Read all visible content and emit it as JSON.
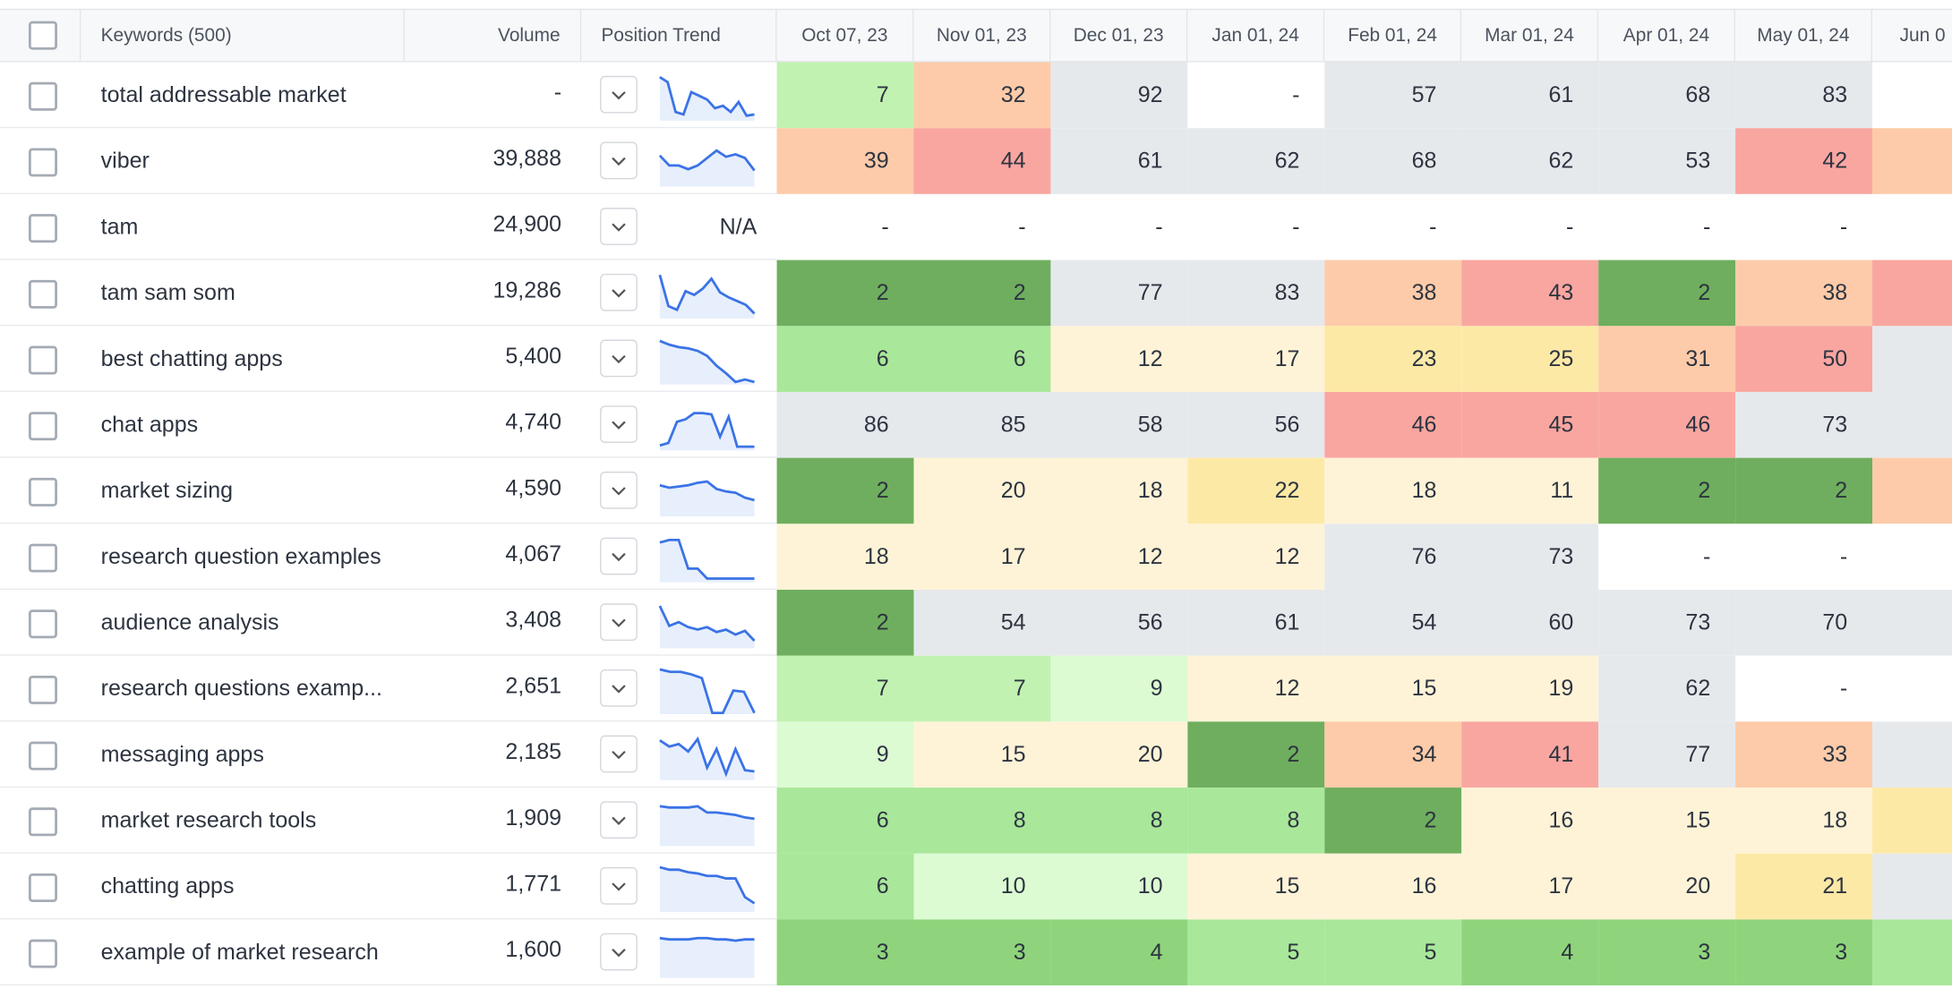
{
  "table": {
    "columns": [
      "Keywords (500)",
      "Volume",
      "Position Trend",
      "Oct 07, 23",
      "Nov 01, 23",
      "Dec 01, 23",
      "Jan 01, 24",
      "Feb 01, 24",
      "Mar 01, 24",
      "Apr 01, 24",
      "May 01, 24",
      "Jun 0"
    ],
    "rows": [
      {
        "keyword": "total addressable market",
        "volume": "-",
        "ranks": [
          7,
          32,
          92,
          "-",
          57,
          61,
          68,
          83
        ],
        "colors": [
          "#c2f2b1",
          "#fdcba9",
          "#e6e9ec",
          "#ffffff",
          "#e6e9ec",
          "#e6e9ec",
          "#e6e9ec",
          "#e6e9ec",
          "#ffffff"
        ]
      },
      {
        "keyword": "viber",
        "volume": "39,888",
        "ranks": [
          39,
          44,
          61,
          62,
          68,
          62,
          53,
          42
        ],
        "colors": [
          "#fdcba9",
          "#f9a6a0",
          "#e6e9ec",
          "#e6e9ec",
          "#e6e9ec",
          "#e6e9ec",
          "#e6e9ec",
          "#f9a6a0",
          "#fdcba9"
        ]
      },
      {
        "keyword": "tam",
        "volume": "24,900",
        "trend": "N/A",
        "ranks": [
          "-",
          "-",
          "-",
          "-",
          "-",
          "-",
          "-",
          "-"
        ],
        "colors": [
          "#ffffff",
          "#ffffff",
          "#ffffff",
          "#ffffff",
          "#ffffff",
          "#ffffff",
          "#ffffff",
          "#ffffff",
          "#ffffff"
        ]
      },
      {
        "keyword": "tam sam som",
        "volume": "19,286",
        "ranks": [
          2,
          2,
          77,
          83,
          38,
          43,
          2,
          38
        ],
        "colors": [
          "#6fae5e",
          "#6fae5e",
          "#e6e9ec",
          "#e6e9ec",
          "#fdcba9",
          "#f9a6a0",
          "#6fae5e",
          "#fdcba9",
          "#f9a6a0"
        ]
      },
      {
        "keyword": "best chatting apps",
        "volume": "5,400",
        "ranks": [
          6,
          6,
          12,
          17,
          23,
          25,
          31,
          50
        ],
        "colors": [
          "#a9e79a",
          "#a9e79a",
          "#fef3d7",
          "#fef3d7",
          "#fde9a6",
          "#fde9a6",
          "#fdcba9",
          "#f9a6a0",
          "#e6e9ec"
        ]
      },
      {
        "keyword": "chat apps",
        "volume": "4,740",
        "ranks": [
          86,
          85,
          58,
          56,
          46,
          45,
          46,
          73
        ],
        "colors": [
          "#e6e9ec",
          "#e6e9ec",
          "#e6e9ec",
          "#e6e9ec",
          "#f9a6a0",
          "#f9a6a0",
          "#f9a6a0",
          "#e6e9ec",
          "#e6e9ec"
        ]
      },
      {
        "keyword": "market sizing",
        "volume": "4,590",
        "ranks": [
          2,
          20,
          18,
          22,
          18,
          11,
          2,
          2
        ],
        "colors": [
          "#6fae5e",
          "#fef3d7",
          "#fef3d7",
          "#fde9a6",
          "#fef3d7",
          "#fef3d7",
          "#6fae5e",
          "#6fae5e",
          "#fdcba9"
        ]
      },
      {
        "keyword": "research question examples",
        "volume": "4,067",
        "ranks": [
          18,
          17,
          12,
          12,
          76,
          73,
          "-",
          "-"
        ],
        "colors": [
          "#fef3d7",
          "#fef3d7",
          "#fef3d7",
          "#fef3d7",
          "#e6e9ec",
          "#e6e9ec",
          "#ffffff",
          "#ffffff",
          "#ffffff"
        ]
      },
      {
        "keyword": "audience analysis",
        "volume": "3,408",
        "ranks": [
          2,
          54,
          56,
          61,
          54,
          60,
          73,
          70
        ],
        "colors": [
          "#6fae5e",
          "#e6e9ec",
          "#e6e9ec",
          "#e6e9ec",
          "#e6e9ec",
          "#e6e9ec",
          "#e6e9ec",
          "#e6e9ec",
          "#e6e9ec"
        ]
      },
      {
        "keyword": "research questions examp...",
        "volume": "2,651",
        "ranks": [
          7,
          7,
          9,
          12,
          15,
          19,
          62,
          "-"
        ],
        "colors": [
          "#c2f2b1",
          "#c2f2b1",
          "#dcfbd3",
          "#fef3d7",
          "#fef3d7",
          "#fef3d7",
          "#e6e9ec",
          "#ffffff",
          "#ffffff"
        ]
      },
      {
        "keyword": "messaging apps",
        "volume": "2,185",
        "ranks": [
          9,
          15,
          20,
          2,
          34,
          41,
          77,
          33
        ],
        "colors": [
          "#dcfbd3",
          "#fef3d7",
          "#fef3d7",
          "#6fae5e",
          "#fdcba9",
          "#f9a6a0",
          "#e6e9ec",
          "#fdcba9",
          "#e6e9ec"
        ]
      },
      {
        "keyword": "market research tools",
        "volume": "1,909",
        "ranks": [
          6,
          8,
          8,
          8,
          2,
          16,
          15,
          18
        ],
        "colors": [
          "#a9e79a",
          "#a9e79a",
          "#a9e79a",
          "#a9e79a",
          "#6fae5e",
          "#fef3d7",
          "#fef3d7",
          "#fef3d7",
          "#fde9a6"
        ]
      },
      {
        "keyword": "chatting apps",
        "volume": "1,771",
        "ranks": [
          6,
          10,
          10,
          15,
          16,
          17,
          20,
          21
        ],
        "colors": [
          "#a9e79a",
          "#dcfbd3",
          "#dcfbd3",
          "#fef3d7",
          "#fef3d7",
          "#fef3d7",
          "#fef3d7",
          "#fde9a6",
          "#e6e9ec"
        ]
      },
      {
        "keyword": "example of market research",
        "volume": "1,600",
        "ranks": [
          3,
          3,
          4,
          5,
          5,
          4,
          3,
          3
        ],
        "colors": [
          "#8fd47c",
          "#8fd47c",
          "#8fd47c",
          "#a9e79a",
          "#a9e79a",
          "#8fd47c",
          "#8fd47c",
          "#8fd47c",
          "#a9e79a"
        ]
      }
    ]
  }
}
